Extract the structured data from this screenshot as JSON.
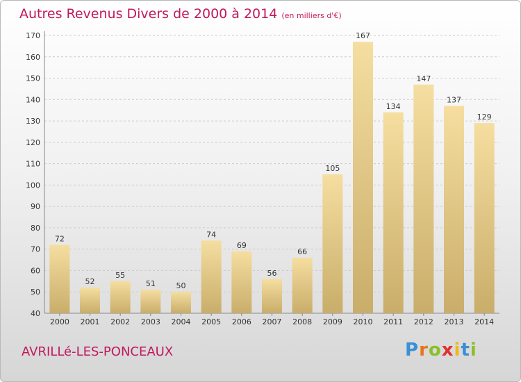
{
  "header": {
    "title": "Autres Revenus Divers de 2000 à 2014",
    "unit": "(en milliers d'€)"
  },
  "footer": {
    "commune": "AVRILLé-LES-PONCEAUX",
    "logo_letters": [
      "P",
      "r",
      "o",
      "x",
      "i",
      "t",
      "i"
    ],
    "logo_colors": [
      "#3a8fd6",
      "#e6761e",
      "#8bbf2a",
      "#e03030",
      "#f0b81c",
      "#3a8fd6",
      "#8bbf2a"
    ]
  },
  "colors": {
    "title": "#c2185b",
    "bar_light": "#f5dea0",
    "bar_dark": "#c9ad6a",
    "grid": "#cccccc"
  },
  "chart_data": {
    "type": "bar",
    "categories": [
      "2000",
      "2001",
      "2002",
      "2003",
      "2004",
      "2005",
      "2006",
      "2007",
      "2008",
      "2009",
      "2010",
      "2011",
      "2012",
      "2013",
      "2014"
    ],
    "values": [
      72,
      52,
      55,
      51,
      50,
      74,
      69,
      56,
      66,
      105,
      167,
      134,
      147,
      137,
      129
    ],
    "title": "Autres Revenus Divers de 2000 à 2014",
    "xlabel": "",
    "ylabel": "",
    "ylim": [
      40,
      170
    ],
    "yticks": [
      40,
      50,
      60,
      70,
      80,
      90,
      100,
      110,
      120,
      130,
      140,
      150,
      160,
      170
    ],
    "grid": true,
    "data_labels": true
  }
}
